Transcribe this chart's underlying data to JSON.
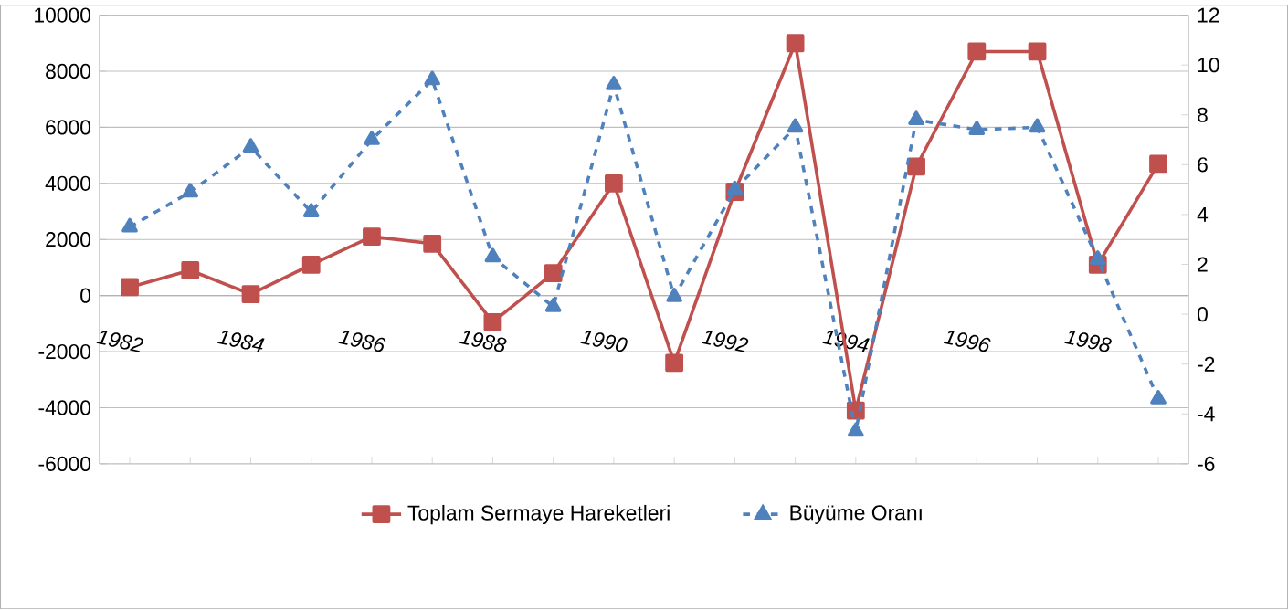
{
  "chart_data": {
    "type": "line",
    "categories": [
      "1982",
      null,
      "1984",
      null,
      "1986",
      null,
      "1988",
      null,
      "1990",
      null,
      "1992",
      null,
      "1994",
      null,
      "1996",
      null,
      "1998",
      null
    ],
    "series": [
      {
        "name": "Toplam Sermaye Hareketleri",
        "color": "#c0504d",
        "marker": "square",
        "line_style": "solid",
        "values": [
          300,
          900,
          50,
          1100,
          2100,
          1850,
          -950,
          800,
          4000,
          -2400,
          3700,
          9000,
          -4100,
          4600,
          8700,
          8700,
          1100,
          4700
        ]
      },
      {
        "name": "Büyüme Oranı",
        "color": "#4f81bd",
        "marker": "triangle",
        "line_style": "dashed",
        "axis": "y2",
        "values": [
          3.5,
          4.9,
          6.7,
          4.1,
          7.0,
          9.4,
          2.3,
          0.3,
          9.2,
          0.7,
          5.0,
          7.5,
          -4.7,
          7.8,
          7.4,
          7.5,
          2.2,
          -3.4
        ]
      }
    ],
    "ylim": [
      -6000,
      10000
    ],
    "yticks": [
      -6000,
      -4000,
      -2000,
      0,
      2000,
      4000,
      6000,
      8000,
      10000
    ],
    "y2lim": [
      -6,
      12
    ],
    "y2ticks": [
      -6,
      -4,
      -2,
      0,
      2,
      4,
      6,
      8,
      10,
      12
    ],
    "grid": "y",
    "legend": "bottom"
  }
}
